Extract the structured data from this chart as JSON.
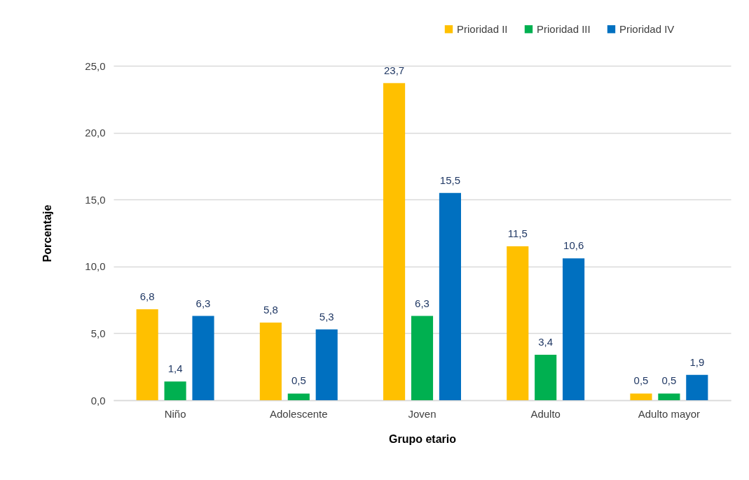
{
  "chart_data": {
    "type": "bar",
    "xlabel": "Grupo etario",
    "ylabel": "Porcentaje",
    "categories": [
      "Niño",
      "Adolescente",
      "Joven",
      "Adulto",
      "Adulto mayor"
    ],
    "series": [
      {
        "name": "Prioridad II",
        "color": "#ffc000",
        "values": [
          6.8,
          5.8,
          23.7,
          11.5,
          0.5
        ],
        "value_labels": [
          "6,8",
          "5,8",
          "23,7",
          "11,5",
          "0,5"
        ]
      },
      {
        "name": "Prioridad III",
        "color": "#00b050",
        "values": [
          1.4,
          0.5,
          6.3,
          3.4,
          0.5
        ],
        "value_labels": [
          "1,4",
          "0,5",
          "6,3",
          "3,4",
          "0,5"
        ]
      },
      {
        "name": "Prioridad IV",
        "color": "#0070c0",
        "values": [
          6.3,
          5.3,
          15.5,
          10.6,
          1.9
        ],
        "value_labels": [
          "6,3",
          "5,3",
          "15,5",
          "10,6",
          "1,9"
        ]
      }
    ],
    "ylim": [
      0,
      25
    ],
    "yticks": [
      {
        "value": 0,
        "label": "0,0"
      },
      {
        "value": 5,
        "label": "5,0"
      },
      {
        "value": 10,
        "label": "10,0"
      },
      {
        "value": 15,
        "label": "15,0"
      },
      {
        "value": 20,
        "label": "20,0"
      },
      {
        "value": 25,
        "label": "25,0"
      }
    ],
    "grid": "y",
    "legend": "top right"
  }
}
